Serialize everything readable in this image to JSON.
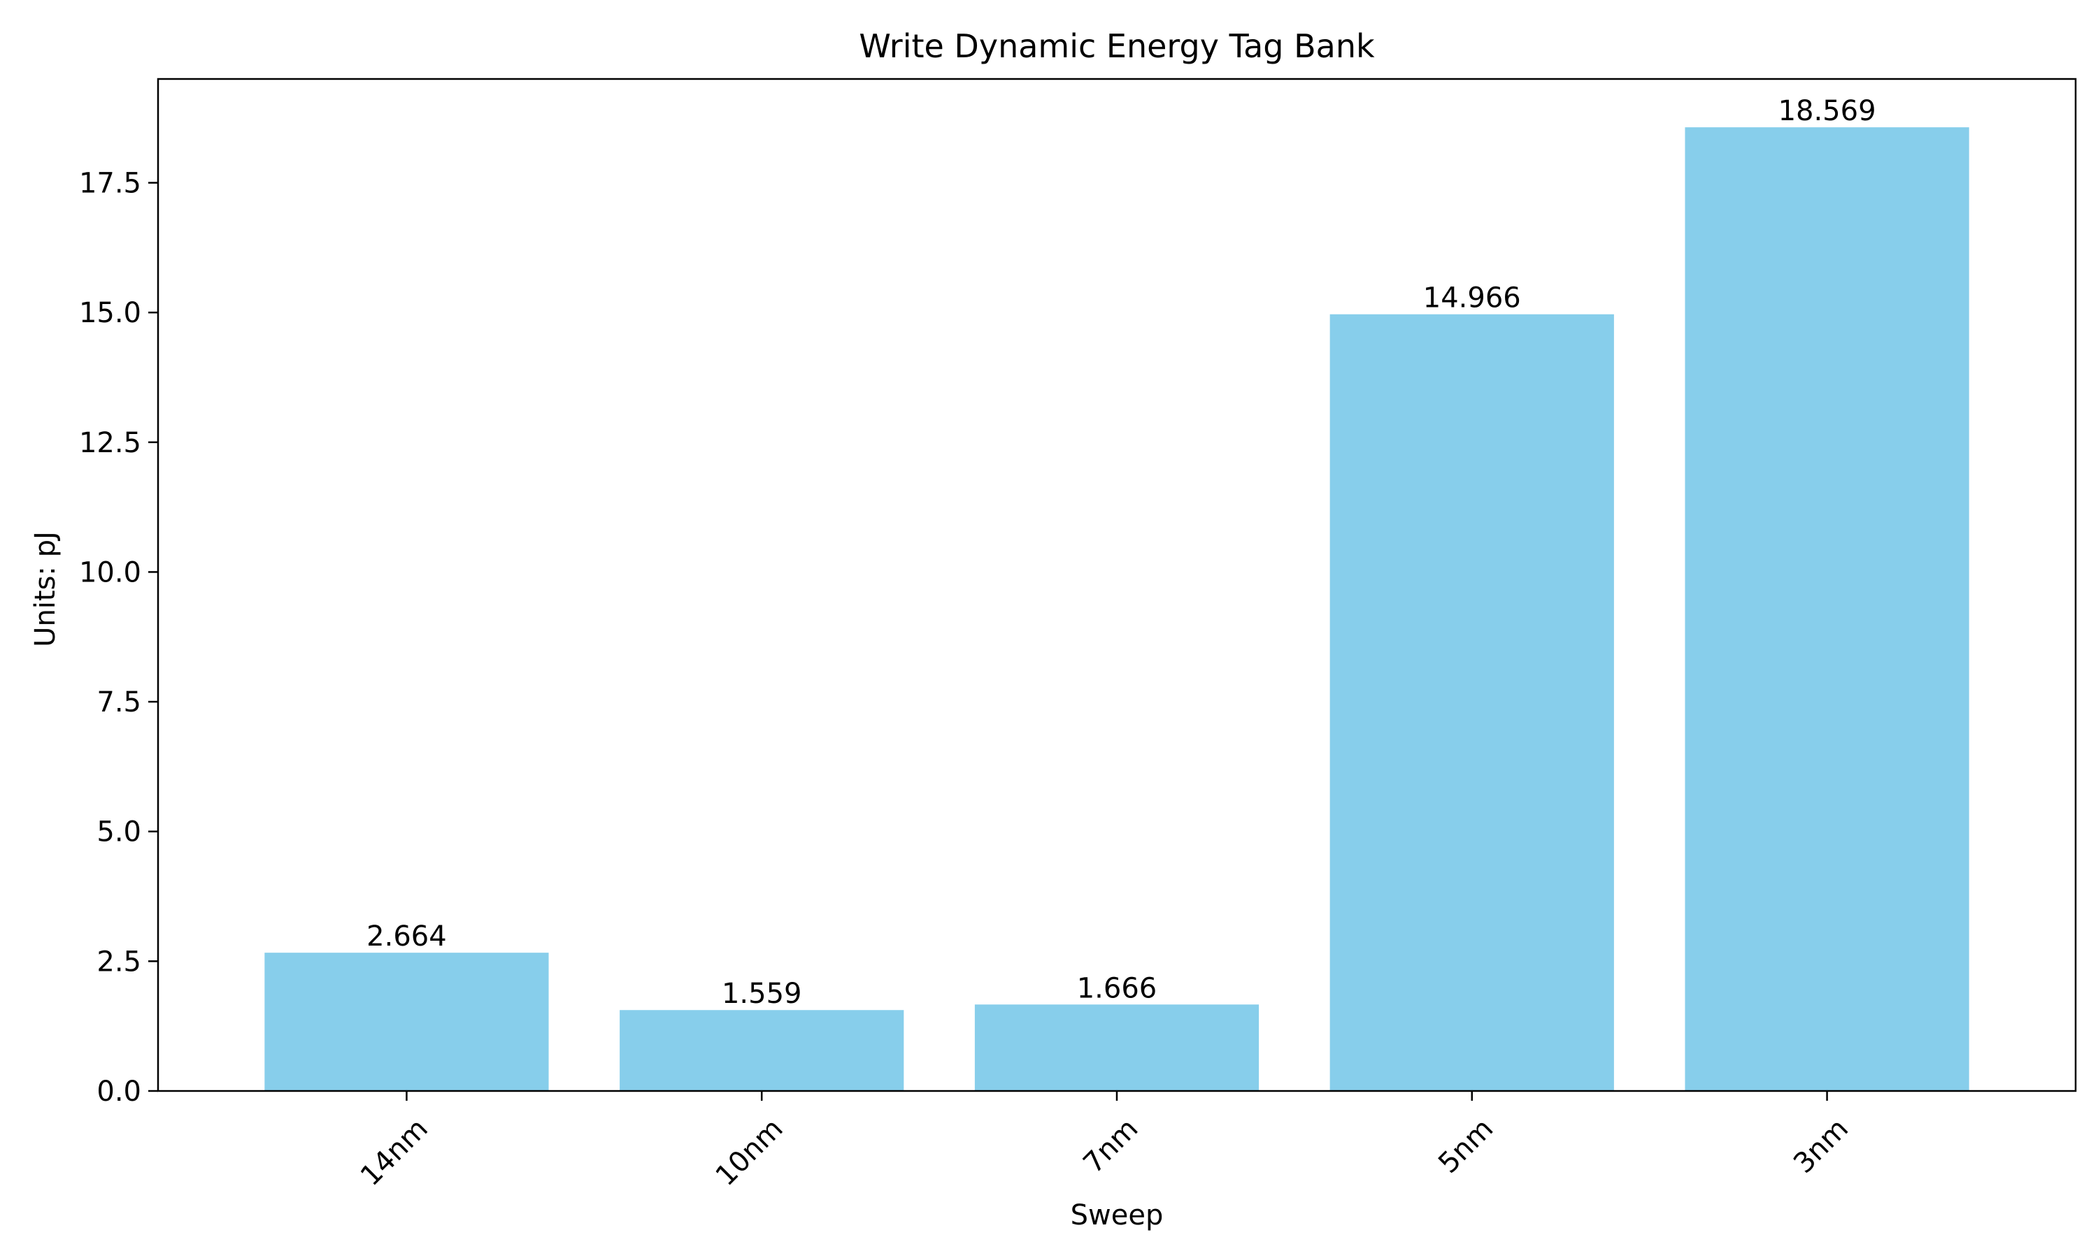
{
  "chart_data": {
    "type": "bar",
    "title": "Write Dynamic Energy Tag Bank",
    "xlabel": "Sweep",
    "ylabel": "Units: pJ",
    "categories": [
      "14nm",
      "10nm",
      "7nm",
      "5nm",
      "3nm"
    ],
    "values": [
      2.664,
      1.559,
      1.666,
      14.966,
      18.569
    ],
    "value_labels": [
      "2.664",
      "1.559",
      "1.666",
      "14.966",
      "18.569"
    ],
    "ylim": [
      0,
      19.5
    ],
    "yticks": [
      0.0,
      2.5,
      5.0,
      7.5,
      10.0,
      12.5,
      15.0,
      17.5
    ],
    "ytick_labels": [
      "0.0",
      "2.5",
      "5.0",
      "7.5",
      "10.0",
      "12.5",
      "15.0",
      "17.5"
    ],
    "grid": false,
    "bar_color": "#87CEEB"
  }
}
